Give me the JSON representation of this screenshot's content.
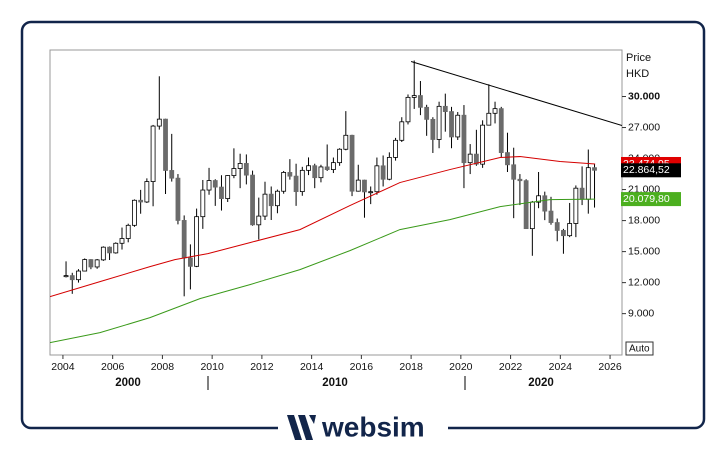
{
  "chart_data": {
    "type": "candlestick",
    "y_title": [
      "Price",
      "HKD"
    ],
    "x": [
      2004.125,
      2004.375,
      2004.625,
      2004.875,
      2005.125,
      2005.375,
      2005.625,
      2005.875,
      2006.125,
      2006.375,
      2006.625,
      2006.875,
      2007.125,
      2007.375,
      2007.625,
      2007.875,
      2008.125,
      2008.375,
      2008.625,
      2008.875,
      2009.125,
      2009.375,
      2009.625,
      2009.875,
      2010.125,
      2010.375,
      2010.625,
      2010.875,
      2011.125,
      2011.375,
      2011.625,
      2011.875,
      2012.125,
      2012.375,
      2012.625,
      2012.875,
      2013.125,
      2013.375,
      2013.625,
      2013.875,
      2014.125,
      2014.375,
      2014.625,
      2014.875,
      2015.125,
      2015.375,
      2015.625,
      2015.875,
      2016.125,
      2016.375,
      2016.625,
      2016.875,
      2017.125,
      2017.375,
      2017.625,
      2017.875,
      2018.125,
      2018.375,
      2018.625,
      2018.875,
      2019.125,
      2019.375,
      2019.625,
      2019.875,
      2020.125,
      2020.375,
      2020.625,
      2020.875,
      2021.125,
      2021.375,
      2021.625,
      2021.875,
      2022.125,
      2022.375,
      2022.625,
      2022.875,
      2023.125,
      2023.375,
      2023.625,
      2023.875,
      2024.125,
      2024.375,
      2024.625,
      2024.875,
      2025.125,
      2025.375
    ],
    "open": [
      12576,
      12681,
      12285,
      13120,
      14230,
      13516,
      14201,
      15429,
      14876,
      15805,
      16267,
      17543,
      19965,
      19801,
      21773,
      27142,
      27813,
      22849,
      22102,
      18016,
      14388,
      13576,
      18379,
      20955,
      21873,
      21239,
      20129,
      22359,
      23035,
      23528,
      22398,
      17592,
      18434,
      20556,
      19441,
      20840,
      22657,
      22299,
      20803,
      22860,
      23306,
      22151,
      23191,
      22933,
      23605,
      24901,
      26250,
      20846,
      21914,
      20777,
      20794,
      23297,
      22001,
      24112,
      25765,
      27554,
      29919,
      30093,
      28955,
      27789,
      25846,
      29051,
      28543,
      26092,
      28190,
      23603,
      24427,
      23459,
      27231,
      28378,
      28828,
      24576,
      23398,
      21997,
      21860,
      17223,
      19781,
      20400,
      18916,
      17810,
      17047,
      16541,
      17719,
      21134,
      20060,
      23120
    ],
    "high": [
      14058,
      12950,
      13305,
      14339,
      14270,
      14287,
      15508,
      15500,
      15900,
      17328,
      17700,
      20049,
      20971,
      22085,
      27254,
      31958,
      27853,
      26387,
      22500,
      18500,
      15700,
      19161,
      21929,
      23100,
      22000,
      22388,
      22400,
      24989,
      24468,
      24400,
      22835,
      20224,
      21760,
      21300,
      21000,
      22800,
      23944,
      23500,
      23200,
      24111,
      23500,
      23400,
      25363,
      24100,
      25000,
      28588,
      26300,
      23400,
      21950,
      21300,
      24100,
      24300,
      24600,
      26000,
      28000,
      30200,
      33484,
      31500,
      29200,
      28000,
      29500,
      30280,
      29000,
      28500,
      29175,
      25400,
      26782,
      27700,
      31183,
      29500,
      29000,
      26500,
      25050,
      22500,
      22000,
      19900,
      22700,
      20800,
      20300,
      18200,
      17200,
      19706,
      21400,
      23241,
      24874,
      23500
    ],
    "low": [
      12500,
      10917,
      12003,
      13100,
      13300,
      13337,
      14100,
      14190,
      14800,
      15200,
      15900,
      17400,
      18664,
      19700,
      19386,
      26800,
      20572,
      21773,
      17637,
      10676,
      11345,
      13500,
      17200,
      20500,
      19423,
      18971,
      19800,
      22100,
      21138,
      21500,
      17500,
      16170,
      18056,
      18056,
      18710,
      20600,
      21962,
      19426,
      20400,
      22400,
      21138,
      21700,
      22800,
      22600,
      23300,
      24800,
      20368,
      20800,
      18279,
      19594,
      20500,
      21300,
      21900,
      23800,
      25600,
      27300,
      28800,
      28200,
      26200,
      24540,
      25000,
      26600,
      25000,
      25800,
      21139,
      22500,
      23300,
      23100,
      27200,
      27400,
      24100,
      22700,
      18235,
      19500,
      17200,
      14597,
      19200,
      18044,
      17600,
      16000,
      14794,
      16400,
      16400,
      19500,
      18671,
      19260
    ],
    "close": [
      12681,
      12285,
      13120,
      14230,
      13516,
      14201,
      15429,
      14876,
      15805,
      16267,
      17543,
      19965,
      19801,
      21773,
      27142,
      27813,
      22849,
      22102,
      18016,
      14388,
      13576,
      18379,
      20955,
      21873,
      21239,
      20129,
      22359,
      23035,
      23528,
      22398,
      17592,
      18434,
      20556,
      19441,
      20840,
      22657,
      22299,
      20803,
      22860,
      23306,
      22151,
      23191,
      22933,
      23605,
      24901,
      26250,
      20846,
      21914,
      20777,
      20794,
      23297,
      22001,
      24112,
      25765,
      27554,
      29919,
      30093,
      28955,
      27789,
      25846,
      29051,
      28543,
      26092,
      28190,
      23603,
      24427,
      23459,
      27231,
      28378,
      28828,
      24576,
      23398,
      21997,
      21860,
      17223,
      19781,
      20400,
      18916,
      17810,
      17047,
      16541,
      17719,
      21134,
      20060,
      23120,
      22864.52
    ],
    "up_color": "#ffffff",
    "down_color": "#6b6b6b",
    "lines": [
      {
        "color": "#d40000",
        "x": [
          2003.48,
          2005.49,
          2007.5,
          2008.5,
          2009.83,
          2011.52,
          2013.53,
          2015.54,
          2017.55,
          2019.56,
          2021.58,
          2022.38,
          2023.99,
          2025.4
        ],
        "values": [
          10646,
          12097,
          13549,
          14226,
          14807,
          15871,
          17129,
          19452,
          21677,
          22935,
          24097,
          24193,
          23710,
          23474.95
        ]
      },
      {
        "color": "#3a9a1a",
        "x": [
          2003.48,
          2005.49,
          2007.5,
          2009.51,
          2011.52,
          2013.53,
          2015.54,
          2017.55,
          2019.56,
          2021.58,
          2023.59,
          2025.4
        ],
        "values": [
          6194,
          7162,
          8613,
          10452,
          11807,
          13258,
          15097,
          17129,
          18097,
          19355,
          20032,
          20079.8
        ]
      },
      {
        "color": "#000000",
        "x": [
          2018.0,
          2026.48
        ],
        "values": [
          33387,
          27194
        ]
      }
    ],
    "badges": [
      {
        "value": 23474.95,
        "label": "23.474,95",
        "color": "#e00000"
      },
      {
        "value": 22864.52,
        "label": "22.864,52",
        "color": "#000000"
      },
      {
        "value": 20079.8,
        "label": "20.079,80",
        "color": "#4caf1f"
      }
    ],
    "xlim": [
      2003.48,
      2026.48
    ],
    "ylim": [
      5000,
      34500
    ],
    "xticks": [
      2004,
      2006,
      2008,
      2010,
      2012,
      2014,
      2016,
      2018,
      2020,
      2022,
      2024,
      2026
    ],
    "decades": [
      "2000",
      "2010",
      "2020"
    ],
    "yticks": [
      {
        "value": 9000,
        "label": "9.000"
      },
      {
        "value": 12000,
        "label": "12.000"
      },
      {
        "value": 15000,
        "label": "15.000"
      },
      {
        "value": 18000,
        "label": "18.000"
      },
      {
        "value": 21000,
        "label": "21.000"
      },
      {
        "value": 24000,
        "label": "24.000"
      },
      {
        "value": 27000,
        "label": "27.000"
      },
      {
        "value": 30000,
        "label": "30.000"
      }
    ],
    "scale_button": "Auto"
  },
  "footer": {
    "brand": "websim"
  }
}
